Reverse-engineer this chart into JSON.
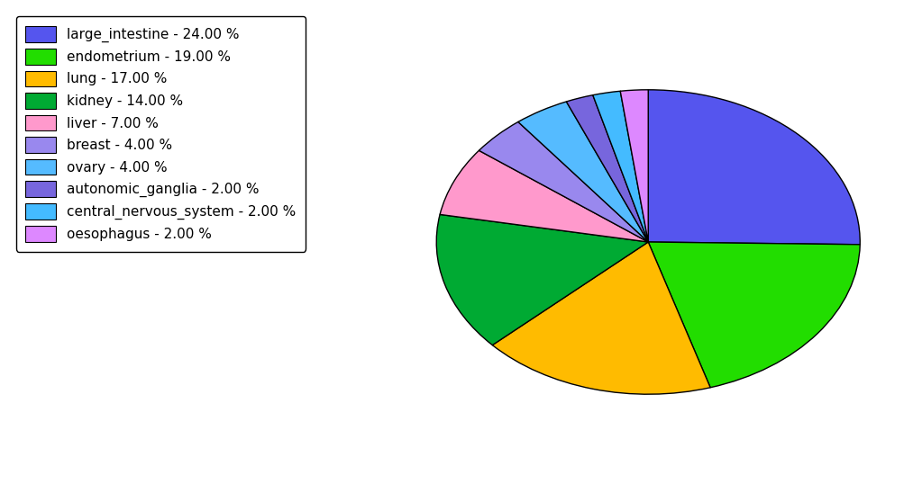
{
  "legend_labels": [
    "large_intestine - 24.00 %",
    "endometrium - 19.00 %",
    "lung - 17.00 %",
    "kidney - 14.00 %",
    "liver - 7.00 %",
    "breast - 4.00 %",
    "ovary - 4.00 %",
    "autonomic_ganglia - 2.00 %",
    "central_nervous_system - 2.00 %",
    "oesophagus - 2.00 %"
  ],
  "sizes": [
    24,
    19,
    17,
    14,
    7,
    4,
    4,
    2,
    2,
    2
  ],
  "colors": [
    "#5555ee",
    "#22dd00",
    "#ffbb00",
    "#00aa33",
    "#ff99cc",
    "#9988ee",
    "#55bbff",
    "#7766dd",
    "#44bbff",
    "#dd88ff"
  ],
  "startangle": 90,
  "background_color": "#ffffff",
  "figsize": [
    10.13,
    5.38
  ],
  "dpi": 100
}
